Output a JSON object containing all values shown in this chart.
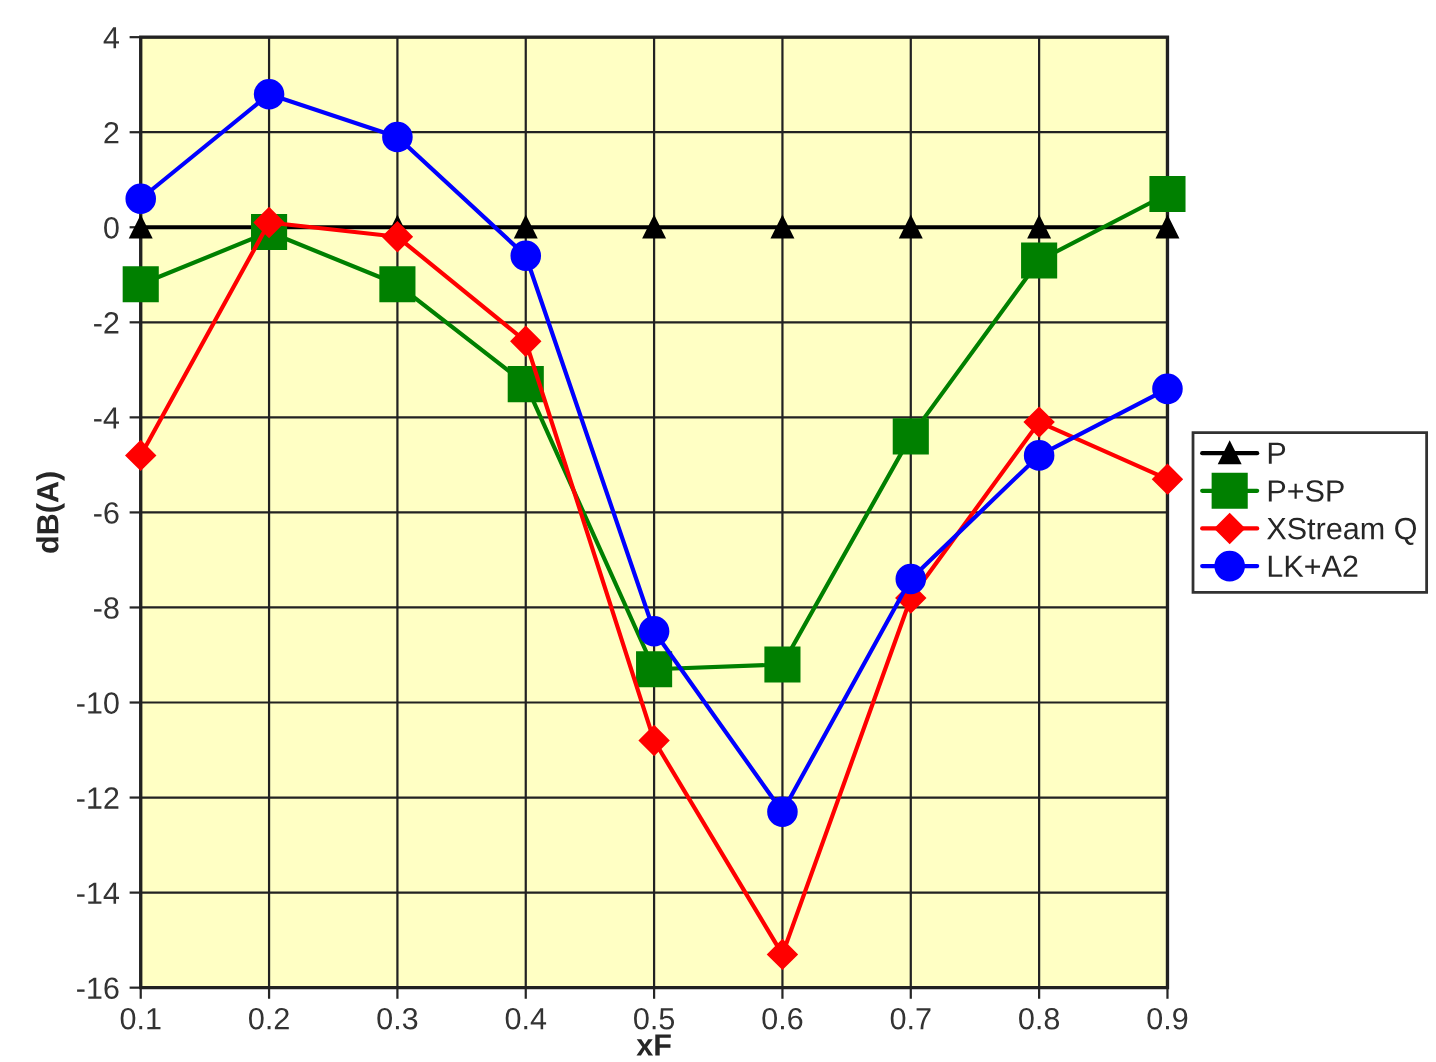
{
  "chart_data": {
    "type": "line",
    "xlabel": "xF",
    "ylabel": "dB(A)",
    "x": [
      0.1,
      0.2,
      0.3,
      0.4,
      0.5,
      0.6,
      0.7,
      0.8,
      0.9
    ],
    "xlim": [
      0.1,
      0.9
    ],
    "xticks": [
      0.1,
      0.2,
      0.3,
      0.4,
      0.5,
      0.6,
      0.7,
      0.8,
      0.9
    ],
    "ylim": [
      -16,
      4
    ],
    "yticks": [
      -16,
      -14,
      -12,
      -10,
      -8,
      -6,
      -4,
      -2,
      0,
      2,
      4
    ],
    "grid": true,
    "legend": "right",
    "series": [
      {
        "name": "P",
        "color": "#000000",
        "marker": "triangle",
        "values": [
          0,
          0,
          0,
          0,
          0,
          0,
          0,
          0,
          0
        ]
      },
      {
        "name": "P+SP",
        "color": "#008000",
        "marker": "square",
        "values": [
          -1.2,
          -0.1,
          -1.2,
          -3.3,
          -9.3,
          -9.2,
          -4.4,
          -0.7,
          0.7
        ]
      },
      {
        "name": "XStream Q",
        "color": "#ff0000",
        "marker": "diamond",
        "values": [
          -4.8,
          0.1,
          -0.2,
          -2.4,
          -10.8,
          -15.3,
          -7.8,
          -4.1,
          -5.3
        ]
      },
      {
        "name": "LK+A2",
        "color": "#0000ff",
        "marker": "circle",
        "values": [
          0.6,
          2.8,
          1.9,
          -0.6,
          -8.5,
          -12.3,
          -7.4,
          -4.8,
          -3.4
        ]
      }
    ]
  }
}
